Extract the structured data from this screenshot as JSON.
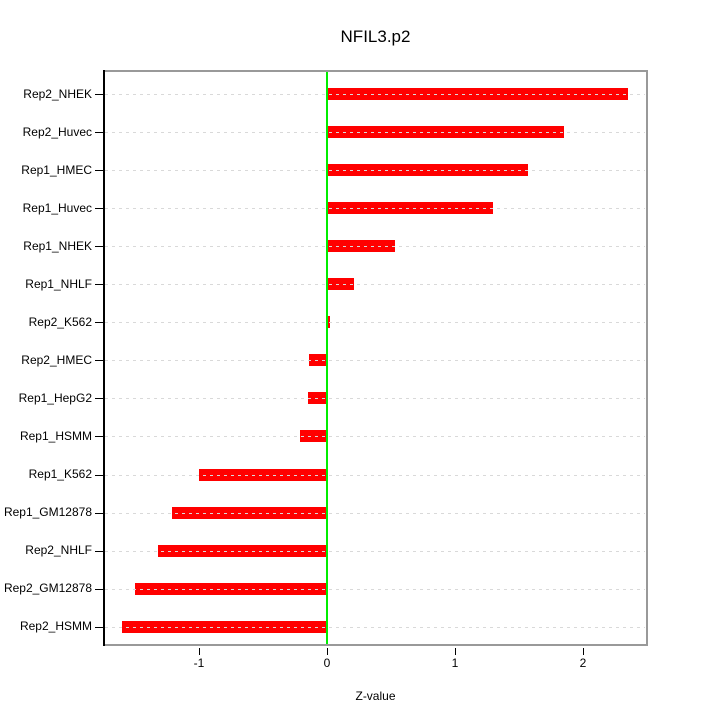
{
  "chart_data": {
    "type": "bar",
    "orientation": "horizontal",
    "title": "NFIL3.p2",
    "xlabel": "Z-value",
    "ylabel": "",
    "categories": [
      "Rep2_NHEK",
      "Rep2_Huvec",
      "Rep1_HMEC",
      "Rep1_Huvec",
      "Rep1_NHEK",
      "Rep1_NHLF",
      "Rep2_K562",
      "Rep2_HMEC",
      "Rep1_HepG2",
      "Rep1_HSMM",
      "Rep1_K562",
      "Rep1_GM12878",
      "Rep2_NHLF",
      "Rep2_GM12878",
      "Rep2_HSMM"
    ],
    "values": [
      2.35,
      1.85,
      1.57,
      1.3,
      0.53,
      0.21,
      0.02,
      -0.14,
      -0.15,
      -0.21,
      -1.0,
      -1.21,
      -1.32,
      -1.5,
      -1.6
    ],
    "xlim": [
      -1.758,
      2.508
    ],
    "xticks": [
      -1,
      0,
      1,
      2
    ],
    "grid": "dashed horizontal gridline per category, drawn over bars",
    "legend": "none",
    "zero_reference_line": 0,
    "colors": {
      "bar": "#ff0000",
      "zero_line": "#00ee00",
      "gridline": "#d9d9d9",
      "box_border": "#999999",
      "axis": "#000000",
      "background": "#ffffff"
    }
  }
}
